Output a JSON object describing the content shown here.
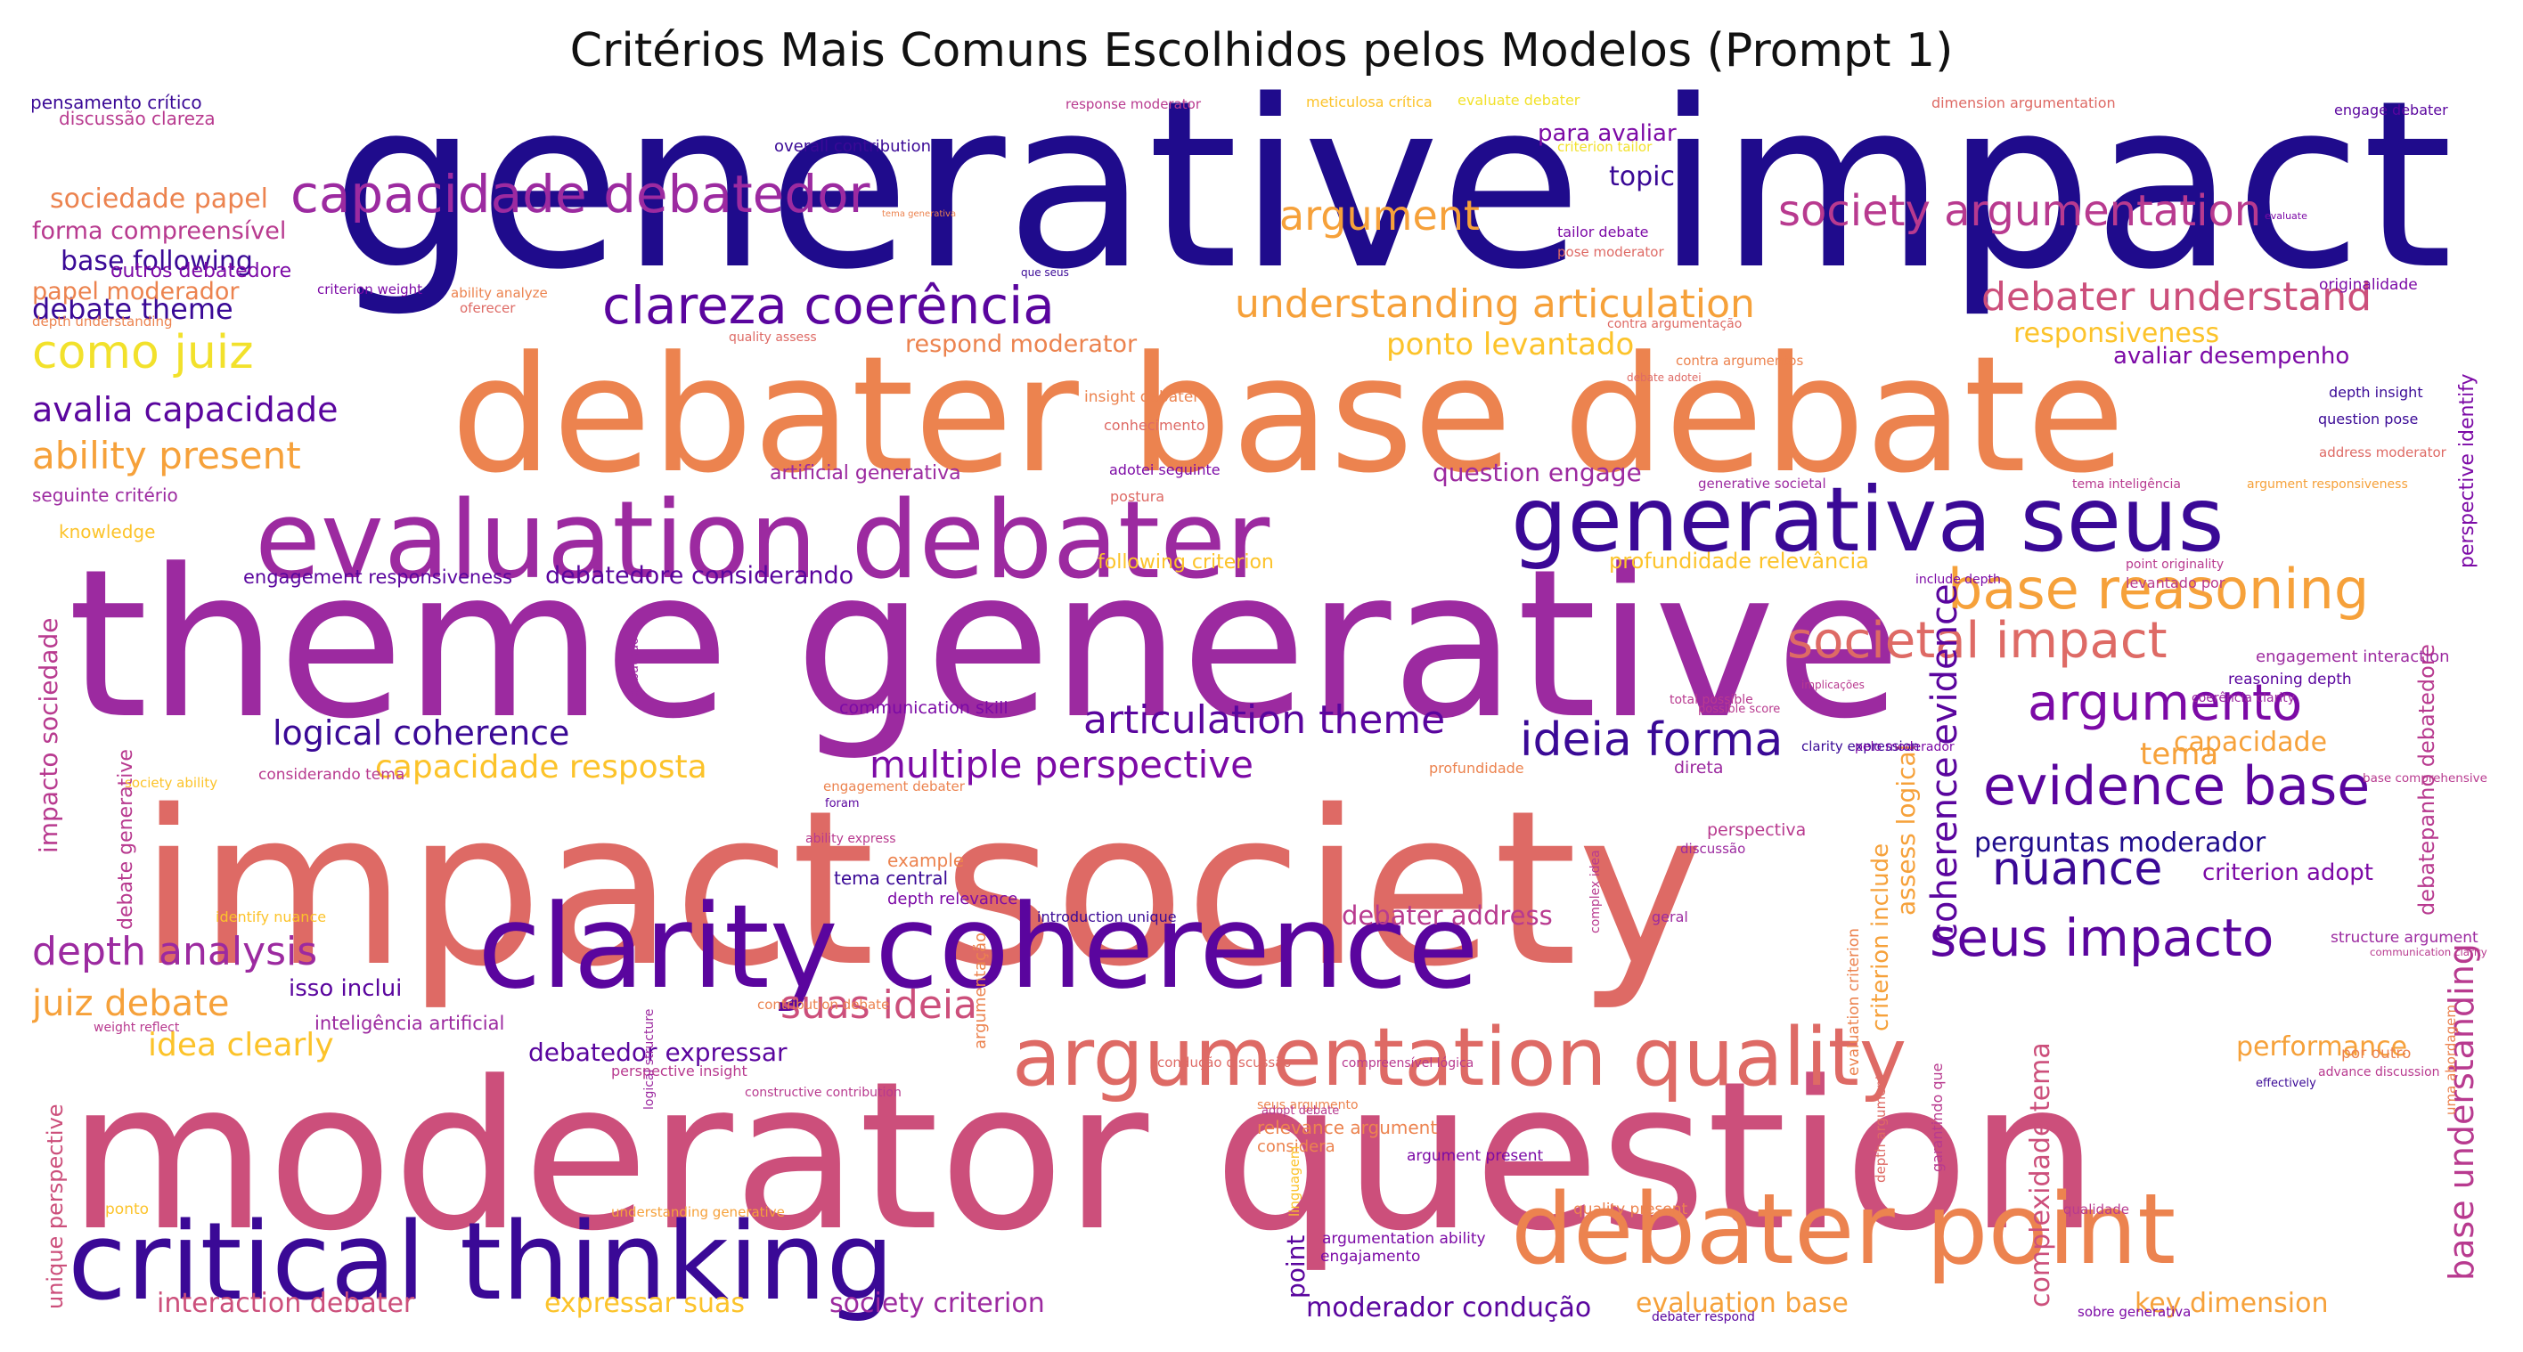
{
  "title": "Critérios Mais Comuns Escolhidos pelos Modelos (Prompt 1)",
  "colors": [
    "#1f0b8c",
    "#3a0996",
    "#5a059e",
    "#7c0aa6",
    "#9c2aa0",
    "#b83a8f",
    "#cc4f7b",
    "#de6a65",
    "#ec834f",
    "#f6a13a",
    "#fcc32a",
    "#f2e12b"
  ],
  "words": [
    {
      "text": "generative impact",
      "color": "#1f0b8c"
    },
    {
      "text": "debater base debate",
      "color": "#ec834f"
    },
    {
      "text": "theme generative",
      "color": "#9c2aa0"
    },
    {
      "text": "impact society",
      "color": "#de6a65"
    },
    {
      "text": "moderator question",
      "color": "#cc4f7b"
    },
    {
      "text": "evaluation debater",
      "color": "#9c2aa0"
    },
    {
      "text": "generativa seus",
      "color": "#3a0996"
    },
    {
      "text": "clarity coherence",
      "color": "#5a059e"
    },
    {
      "text": "critical thinking",
      "color": "#3a0996"
    },
    {
      "text": "debater point",
      "color": "#ec834f"
    },
    {
      "text": "argumentation quality",
      "color": "#de6a65"
    },
    {
      "text": "capacidade debatedor",
      "color": "#9c2aa0"
    },
    {
      "text": "clareza coerência",
      "color": "#5a059e"
    },
    {
      "text": "understanding articulation",
      "color": "#f6a13a"
    },
    {
      "text": "debater understand",
      "color": "#cc4f7b"
    },
    {
      "text": "society argumentation",
      "color": "#b83a8f"
    },
    {
      "text": "argument",
      "color": "#f6a13a"
    },
    {
      "text": "base reasoning",
      "color": "#f6a13a"
    },
    {
      "text": "societal impact",
      "color": "#de6a65"
    },
    {
      "text": "argumento",
      "color": "#7c0aa6"
    },
    {
      "text": "evidence base",
      "color": "#5a059e"
    },
    {
      "text": "ideia forma",
      "color": "#3a0996"
    },
    {
      "text": "articulation theme",
      "color": "#5a059e"
    },
    {
      "text": "logical coherence",
      "color": "#3a0996"
    },
    {
      "text": "multiple perspective",
      "color": "#7c0aa6"
    },
    {
      "text": "nuance",
      "color": "#3a0996"
    },
    {
      "text": "seus impacto",
      "color": "#5a059e"
    },
    {
      "text": "coherence evidence",
      "color": "#5a059e"
    },
    {
      "text": "perguntas moderador",
      "color": "#1f0b8c"
    },
    {
      "text": "como juiz",
      "color": "#f2e12b"
    },
    {
      "text": "avalia capacidade",
      "color": "#5a059e"
    },
    {
      "text": "ability present",
      "color": "#f6a13a"
    },
    {
      "text": "depth analysis",
      "color": "#9c2aa0"
    },
    {
      "text": "juiz debate",
      "color": "#f6a13a"
    },
    {
      "text": "idea clearly",
      "color": "#fcc32a"
    },
    {
      "text": "suas ideia",
      "color": "#cc4f7b"
    },
    {
      "text": "capacidade resposta",
      "color": "#fcc32a"
    },
    {
      "text": "debate theme",
      "color": "#3a0996"
    },
    {
      "text": "base following",
      "color": "#3a0996"
    },
    {
      "text": "sociedade papel",
      "color": "#ec834f"
    },
    {
      "text": "forma compreensível",
      "color": "#b83a8f"
    },
    {
      "text": "papel moderador",
      "color": "#ec834f"
    },
    {
      "text": "outros debatedore",
      "color": "#7c0aa6"
    },
    {
      "text": "pensamento crítico",
      "color": "#3a0996"
    },
    {
      "text": "discussão clareza",
      "color": "#b83a8f"
    },
    {
      "text": "seguinte critério",
      "color": "#9c2aa0"
    },
    {
      "text": "knowledge",
      "color": "#fcc32a"
    },
    {
      "text": "engagement responsiveness",
      "color": "#5a059e"
    },
    {
      "text": "debatedore considerando",
      "color": "#5a059e"
    },
    {
      "text": "ponto levantado",
      "color": "#fcc32a"
    },
    {
      "text": "respond moderator",
      "color": "#ec834f"
    },
    {
      "text": "responsiveness",
      "color": "#fcc32a"
    },
    {
      "text": "avaliar desempenho",
      "color": "#7c0aa6"
    },
    {
      "text": "question engage",
      "color": "#9c2aa0"
    },
    {
      "text": "topic",
      "color": "#3a0996"
    },
    {
      "text": "para avaliar",
      "color": "#7c0aa6"
    },
    {
      "text": "tema",
      "color": "#f6a13a"
    },
    {
      "text": "capacidade",
      "color": "#f6a13a"
    },
    {
      "text": "performance",
      "color": "#f6a13a"
    },
    {
      "text": "criterion adopt",
      "color": "#7c0aa6"
    },
    {
      "text": "debater address",
      "color": "#b83a8f"
    },
    {
      "text": "debatedor expressar",
      "color": "#5a059e"
    },
    {
      "text": "interaction debater",
      "color": "#cc4f7b"
    },
    {
      "text": "expressar suas",
      "color": "#fcc32a"
    },
    {
      "text": "society criterion",
      "color": "#9c2aa0"
    },
    {
      "text": "moderador condução",
      "color": "#5a059e"
    },
    {
      "text": "evaluation base",
      "color": "#f6a13a"
    },
    {
      "text": "key dimension",
      "color": "#f6a13a"
    },
    {
      "text": "isso inclui",
      "color": "#5a059e"
    },
    {
      "text": "inteligência artificial",
      "color": "#9c2aa0"
    },
    {
      "text": "perspective identify",
      "color": "#7c0aa6"
    },
    {
      "text": "base understanding",
      "color": "#b83a8f"
    },
    {
      "text": "debatepanho debatedore",
      "color": "#b83a8f"
    },
    {
      "text": "impacto sociedade",
      "color": "#b83a8f"
    },
    {
      "text": "complexidade tema",
      "color": "#cc4f7b"
    },
    {
      "text": "assess logical",
      "color": "#f6a13a"
    },
    {
      "text": "criterion include",
      "color": "#f6a13a"
    },
    {
      "text": "unique perspective",
      "color": "#cc4f7b"
    },
    {
      "text": "point",
      "color": "#5a059e"
    },
    {
      "text": "debate generative",
      "color": "#b83a8f"
    },
    {
      "text": "artificial generativa",
      "color": "#9c2aa0"
    },
    {
      "text": "profundidade relevância",
      "color": "#fcc32a"
    },
    {
      "text": "following criterion",
      "color": "#fcc32a"
    },
    {
      "text": "response moderator",
      "color": "#b83a8f"
    },
    {
      "text": "overall contribution",
      "color": "#3a0996"
    },
    {
      "text": "meticulosa crítica",
      "color": "#fcc32a"
    },
    {
      "text": "dimension argumentation",
      "color": "#de6a65"
    },
    {
      "text": "engage debater",
      "color": "#5a059e"
    },
    {
      "text": "criterion tailor",
      "color": "#f2e12b"
    },
    {
      "text": "evaluate debater",
      "color": "#f2e12b"
    },
    {
      "text": "tailor debate",
      "color": "#7c0aa6"
    },
    {
      "text": "pose moderator",
      "color": "#de6a65"
    },
    {
      "text": "originalidade",
      "color": "#7c0aa6"
    },
    {
      "text": "depth insight",
      "color": "#3a0996"
    },
    {
      "text": "question pose",
      "color": "#3a0996"
    },
    {
      "text": "address moderator",
      "color": "#de6a65"
    },
    {
      "text": "insight debater",
      "color": "#ec834f"
    },
    {
      "text": "conhecimento",
      "color": "#de6a65"
    },
    {
      "text": "adotei seguinte",
      "color": "#7c0aa6"
    },
    {
      "text": "postura",
      "color": "#de6a65"
    },
    {
      "text": "quality assess",
      "color": "#de6a65"
    },
    {
      "text": "contra argumentação",
      "color": "#de6a65"
    },
    {
      "text": "contra argumentos",
      "color": "#ec834f"
    },
    {
      "text": "criterion weight",
      "color": "#7c0aa6"
    },
    {
      "text": "oferecer",
      "color": "#de6a65"
    },
    {
      "text": "ability analyze",
      "color": "#ec834f"
    },
    {
      "text": "depth understanding",
      "color": "#ec834f"
    },
    {
      "text": "generative societal",
      "color": "#9c2aa0"
    },
    {
      "text": "tema inteligência",
      "color": "#b83a8f"
    },
    {
      "text": "argument responsiveness",
      "color": "#f6a13a"
    },
    {
      "text": "point originality",
      "color": "#b83a8f"
    },
    {
      "text": "levantado por",
      "color": "#b83a8f"
    },
    {
      "text": "include depth",
      "color": "#7c0aa6"
    },
    {
      "text": "engagement interaction",
      "color": "#9c2aa0"
    },
    {
      "text": "reasoning depth",
      "color": "#5a059e"
    },
    {
      "text": "communication skill",
      "color": "#7c0aa6"
    },
    {
      "text": "total possible",
      "color": "#b83a8f"
    },
    {
      "text": "possible score",
      "color": "#b83a8f"
    },
    {
      "text": "clarity expression",
      "color": "#3a0996"
    },
    {
      "text": "pelo moderador",
      "color": "#7c0aa6"
    },
    {
      "text": "implicações",
      "color": "#b83a8f"
    },
    {
      "text": "coerência clarity",
      "color": "#9c2aa0"
    },
    {
      "text": "base comprehensive",
      "color": "#b83a8f"
    },
    {
      "text": "direta",
      "color": "#9c2aa0"
    },
    {
      "text": "profundidade",
      "color": "#ec834f"
    },
    {
      "text": "perspectiva",
      "color": "#b83a8f"
    },
    {
      "text": "discussão",
      "color": "#9c2aa0"
    },
    {
      "text": "society ability",
      "color": "#fcc32a"
    },
    {
      "text": "considerando tema",
      "color": "#b83a8f"
    },
    {
      "text": "engagement debater",
      "color": "#ec834f"
    },
    {
      "text": "foram",
      "color": "#5a059e"
    },
    {
      "text": "ability express",
      "color": "#b83a8f"
    },
    {
      "text": "example",
      "color": "#ec834f"
    },
    {
      "text": "tema central",
      "color": "#3a0996"
    },
    {
      "text": "depth relevance",
      "color": "#7c0aa6"
    },
    {
      "text": "introduction unique",
      "color": "#3a0996"
    },
    {
      "text": "identify nuance",
      "color": "#fcc32a"
    },
    {
      "text": "perspective insight",
      "color": "#b83a8f"
    },
    {
      "text": "geral",
      "color": "#9c2aa0"
    },
    {
      "text": "weight reflect",
      "color": "#b83a8f"
    },
    {
      "text": "contribution debate",
      "color": "#ec834f"
    },
    {
      "text": "constructive contribution",
      "color": "#b83a8f"
    },
    {
      "text": "condução discussão",
      "color": "#de6a65"
    },
    {
      "text": "compreensível lógica",
      "color": "#b83a8f"
    },
    {
      "text": "seus argumento",
      "color": "#ec834f"
    },
    {
      "text": "relevance argument",
      "color": "#ec834f"
    },
    {
      "text": "considera",
      "color": "#ec834f"
    },
    {
      "text": "argument present",
      "color": "#7c0aa6"
    },
    {
      "text": "quality present",
      "color": "#ec834f"
    },
    {
      "text": "qualidade",
      "color": "#b83a8f"
    },
    {
      "text": "argumentation ability",
      "color": "#7c0aa6"
    },
    {
      "text": "engajamento",
      "color": "#7c0aa6"
    },
    {
      "text": "debater respond",
      "color": "#5a059e"
    },
    {
      "text": "sobre generativa",
      "color": "#7c0aa6"
    },
    {
      "text": "adopt debate",
      "color": "#b83a8f"
    },
    {
      "text": "ponto",
      "color": "#fcc32a"
    },
    {
      "text": "understanding generative",
      "color": "#f6a13a"
    },
    {
      "text": "structure argument",
      "color": "#9c2aa0"
    },
    {
      "text": "communication clarity",
      "color": "#b83a8f"
    },
    {
      "text": "por outro",
      "color": "#ec834f"
    },
    {
      "text": "advance discussion",
      "color": "#b83a8f"
    },
    {
      "text": "effectively",
      "color": "#3a0996"
    },
    {
      "text": "uma abordagem",
      "color": "#ec834f"
    },
    {
      "text": "garantindo que",
      "color": "#b83a8f"
    },
    {
      "text": "tema generativa",
      "color": "#ec834f"
    },
    {
      "text": "que seus",
      "color": "#3a0996"
    },
    {
      "text": "debate adotei",
      "color": "#de6a65"
    },
    {
      "text": "evaluate",
      "color": "#7c0aa6"
    },
    {
      "text": "evaluation criterion",
      "color": "#ec834f"
    },
    {
      "text": "argumentação",
      "color": "#ec834f"
    },
    {
      "text": "debatedor",
      "color": "#9c2aa0"
    },
    {
      "text": "linguagem",
      "color": "#fcc32a"
    },
    {
      "text": "complex idea",
      "color": "#b83a8f"
    },
    {
      "text": "logical structure",
      "color": "#9c2aa0"
    },
    {
      "text": "depth argument",
      "color": "#de6a65"
    }
  ]
}
